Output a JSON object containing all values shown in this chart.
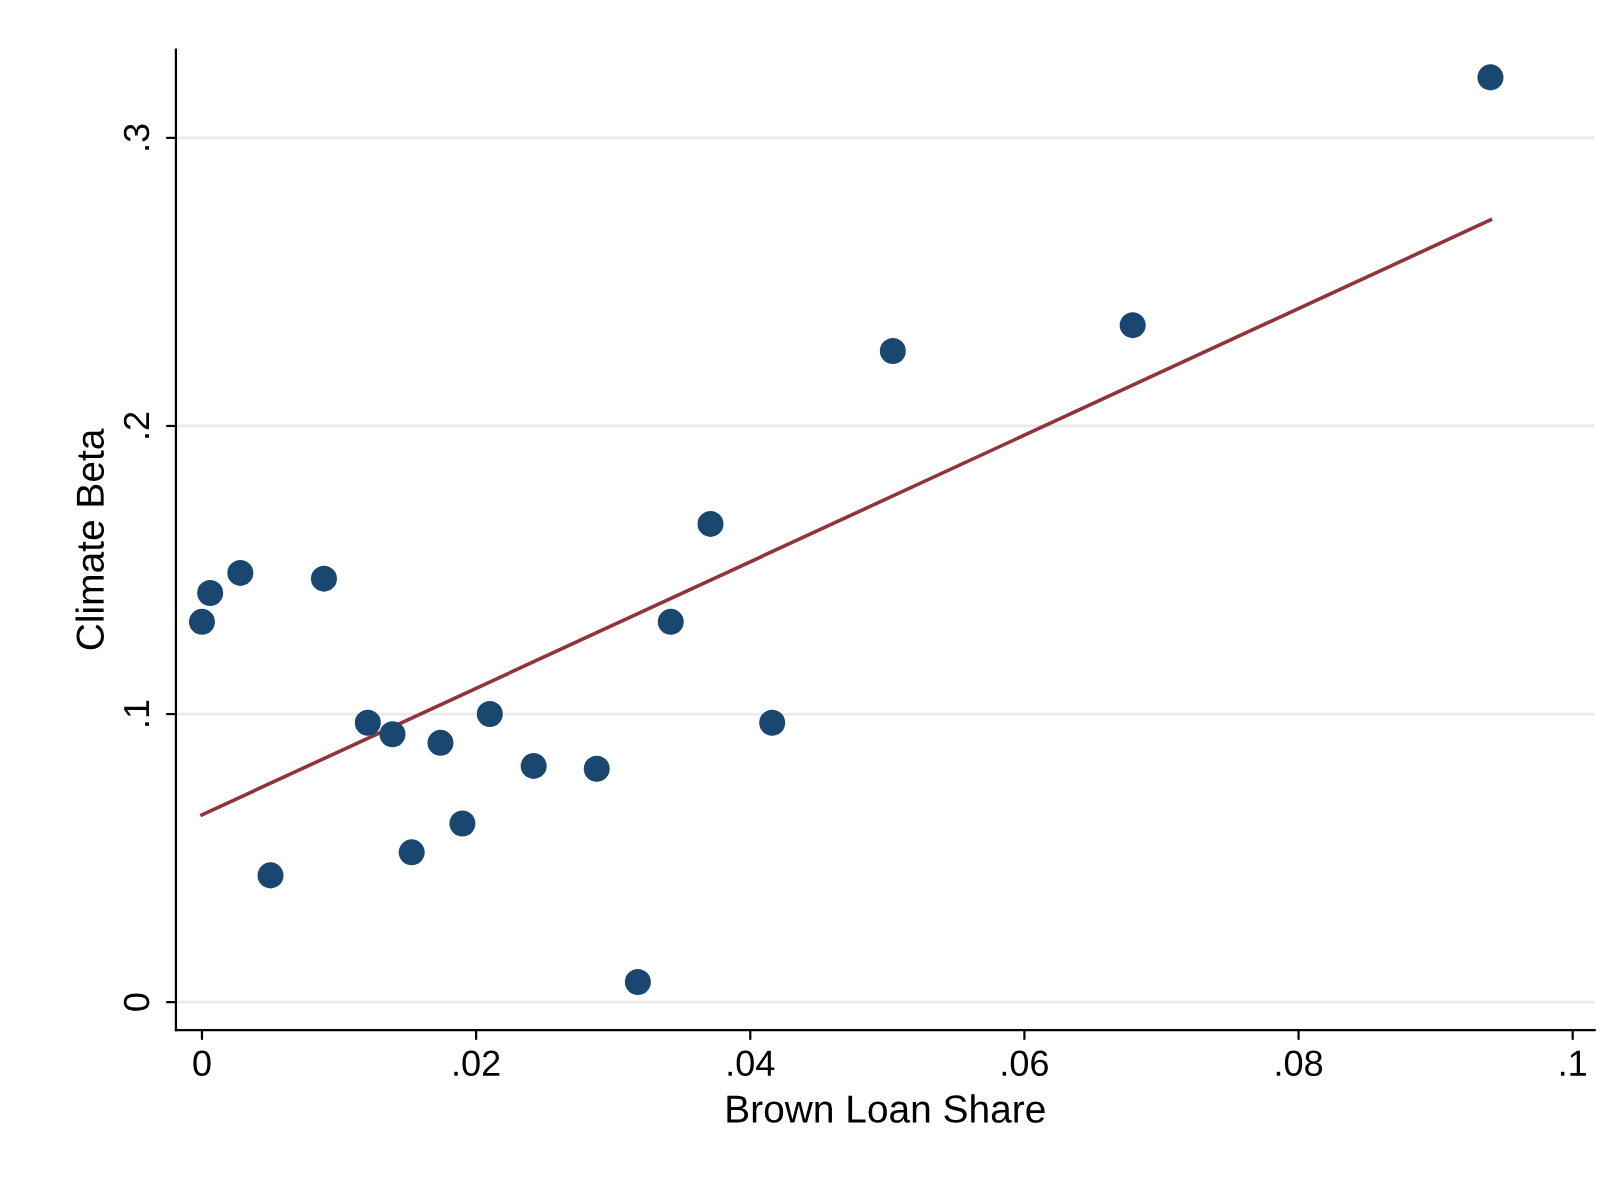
{
  "chart_data": {
    "type": "scatter",
    "xlabel": "Brown Loan Share",
    "ylabel": "Climate Beta",
    "xlim": [
      -0.0019,
      0.1016
    ],
    "ylim": [
      -0.0097,
      0.3306
    ],
    "xticks": [
      {
        "value": 0,
        "label": "0"
      },
      {
        "value": 0.02,
        "label": ".02"
      },
      {
        "value": 0.04,
        "label": ".04"
      },
      {
        "value": 0.06,
        "label": ".06"
      },
      {
        "value": 0.08,
        "label": ".08"
      },
      {
        "value": 0.1,
        "label": ".1"
      }
    ],
    "yticks": [
      {
        "value": 0,
        "label": "0"
      },
      {
        "value": 0.1,
        "label": ".1"
      },
      {
        "value": 0.2,
        "label": ".2"
      },
      {
        "value": 0.3,
        "label": ".3"
      }
    ],
    "grid": "y",
    "series": [
      {
        "marker": "circle",
        "color": "#1a476f",
        "x": [
          0,
          0.0006,
          0.0028,
          0.005,
          0.0089,
          0.0121,
          0.0139,
          0.0153,
          0.0174,
          0.019,
          0.021,
          0.0242,
          0.0288,
          0.0318,
          0.0342,
          0.0371,
          0.0416,
          0.0504,
          0.0679,
          0.094
        ],
        "values": [
          0.132,
          0.142,
          0.149,
          0.044,
          0.147,
          0.097,
          0.093,
          0.052,
          0.09,
          0.062,
          0.1,
          0.082,
          0.081,
          0.007,
          0.132,
          0.166,
          0.097,
          0.226,
          0.235,
          0.321
        ]
      },
      {
        "type": "line",
        "color": "#90353b",
        "x": [
          0,
          0.094
        ],
        "values": [
          0.065,
          0.2715
        ]
      }
    ]
  }
}
